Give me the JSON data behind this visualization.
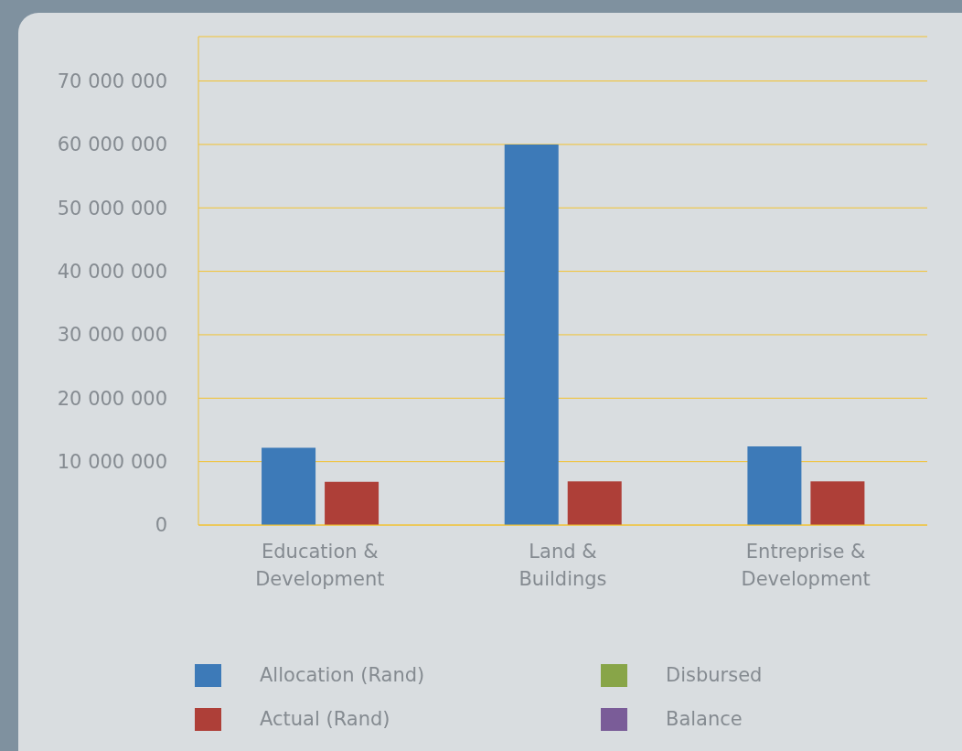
{
  "chart_data": {
    "type": "bar",
    "categories": [
      "Education & Development",
      "Land & Buildings",
      "Entreprise & Development"
    ],
    "series": [
      {
        "name": "Allocation (Rand)",
        "color": "#3d7ab8",
        "values": [
          12200000,
          60000000,
          12400000
        ]
      },
      {
        "name": "Actual (Rand)",
        "color": "#ae3f38",
        "values": [
          6800000,
          6900000,
          6900000
        ]
      },
      {
        "name": "Disbursed",
        "color": "#88a548",
        "values": [
          null,
          null,
          null
        ]
      },
      {
        "name": "Balance",
        "color": "#7a5c98",
        "values": [
          null,
          null,
          null
        ]
      }
    ],
    "ylim": [
      0,
      77000000
    ],
    "yticks": [
      {
        "value": 0,
        "label": "0"
      },
      {
        "value": 10000000,
        "label": "10 000 000"
      },
      {
        "value": 20000000,
        "label": "20 000 000"
      },
      {
        "value": 30000000,
        "label": "30 000 000"
      },
      {
        "value": 40000000,
        "label": "40 000 000"
      },
      {
        "value": 50000000,
        "label": "50 000 000"
      },
      {
        "value": 60000000,
        "label": "60 000 000"
      },
      {
        "value": 70000000,
        "label": "70 000 000"
      }
    ],
    "grid": "y",
    "legend": "bottom"
  }
}
